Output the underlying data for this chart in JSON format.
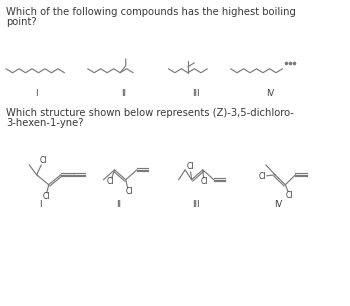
{
  "bg_color": "#ffffff",
  "text_color": "#3a3a3a",
  "line_color": "#7a7a7a",
  "q1_line1": "Which of the following compounds has the highest boiling",
  "q1_line2": "point?",
  "q2_line1": "Which structure shown below represents (Z)-3,5-dichloro-",
  "q2_line2": "3-hexen-1-yne?",
  "font_size_text": 7.2,
  "font_size_label": 6.0
}
